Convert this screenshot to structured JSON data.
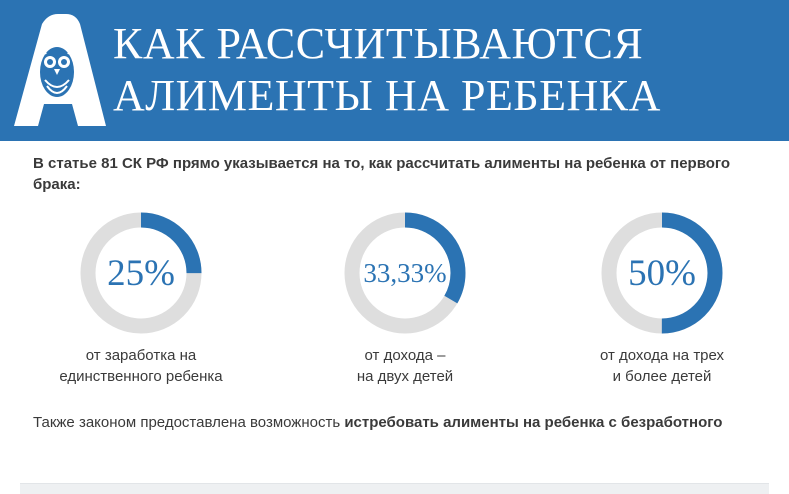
{
  "header": {
    "title_line1": "КАК РАССЧИТЫВАЮТСЯ",
    "title_line2": "АЛИМЕНТЫ НА РЕБЕНКА",
    "background_color": "#2b73b3",
    "logo_icon": "owl-letter-a-logo"
  },
  "intro": "В статье 81 СК РФ прямо указывается на то, как рассчитать алименты на ребенка от первого брака:",
  "rings": [
    {
      "label": "25%",
      "fraction": 0.25,
      "caption_line1": "от заработка на",
      "caption_line2": "единственного ребенка"
    },
    {
      "label": "33,33%",
      "fraction": 0.3333,
      "caption_line1": "от дохода –",
      "caption_line2": "на двух детей"
    },
    {
      "label": "50%",
      "fraction": 0.5,
      "caption_line1": "от дохода на трех",
      "caption_line2": "и более детей"
    }
  ],
  "colors": {
    "accent": "#2b73b3",
    "ring_track": "#dedede"
  },
  "footer": {
    "text_plain": "Также законом предоставлена возможность ",
    "text_bold": "истребовать алименты на ребенка с безработного"
  }
}
